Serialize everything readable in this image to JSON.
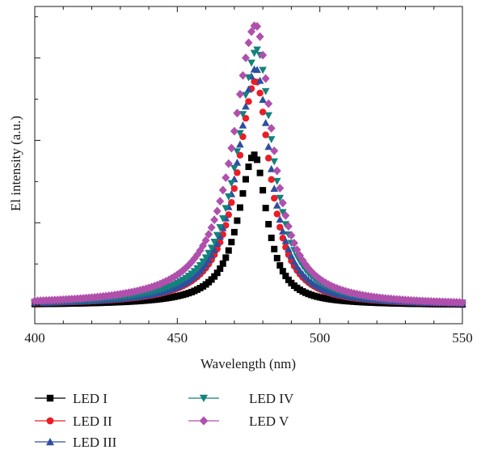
{
  "chart_data": {
    "type": "scatter",
    "xlabel": "Wavelength (nm)",
    "ylabel": "El intensity (a.u.)",
    "xlim": [
      400,
      550
    ],
    "ylim": [
      -0.09,
      1.45
    ],
    "x_ticks": [
      400,
      450,
      500,
      550
    ],
    "x_tick_labels": [
      "400",
      "450",
      "500",
      "550"
    ],
    "y_tick_labels": [],
    "grid": false,
    "legend_position": "bottom, below plot, two columns",
    "colors": {
      "LED I": "#000000",
      "LED II": "#ee1c24",
      "LED III": "#2e4fa0",
      "LED IV": "#14817c",
      "LED V": "#b050ac"
    },
    "series": [
      {
        "name": "LED I",
        "marker": "square",
        "color": "#000000",
        "peak_x": 477,
        "peak_y": 0.73,
        "sigma_left": 6.8,
        "sigma_right": 5.4
      },
      {
        "name": "LED II",
        "marker": "circle",
        "color": "#ee1c24",
        "peak_x": 477.5,
        "peak_y": 1.09,
        "sigma_left": 7.8,
        "sigma_right": 6.2
      },
      {
        "name": "LED III",
        "marker": "triangle-up",
        "color": "#2e4fa0",
        "peak_x": 477.5,
        "peak_y": 1.15,
        "sigma_left": 8.0,
        "sigma_right": 6.4
      },
      {
        "name": "LED IV",
        "marker": "triangle-down",
        "color": "#14817c",
        "peak_x": 478,
        "peak_y": 1.24,
        "sigma_left": 8.6,
        "sigma_right": 6.8
      },
      {
        "name": "LED V",
        "marker": "diamond",
        "color": "#b050ac",
        "peak_x": 477.5,
        "peak_y": 1.36,
        "sigma_left": 9.6,
        "sigma_right": 7.2
      }
    ],
    "sample_x_start": 400,
    "sample_x_end": 550,
    "sample_step": 1
  }
}
